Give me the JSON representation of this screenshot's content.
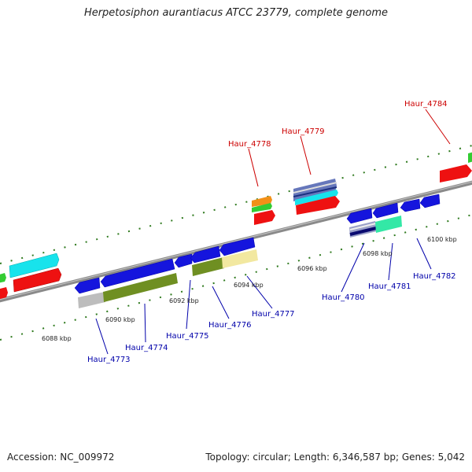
{
  "title": "Herpetosiphon aurantiacus ATCC 23779, complete genome",
  "footer": {
    "accession": "Accession: NC_009972",
    "summary": "Topology: circular; Length: 6,346,587 bp; Genes: 5,042"
  },
  "colors": {
    "backbone": "#8a8a8a",
    "tick": "#2f7a1e",
    "label_forward": "#cc0000",
    "label_reverse": "#0000aa"
  },
  "scale_labels": [
    "6088 kbp",
    "6090 kbp",
    "6092 kbp",
    "6094 kbp",
    "6096 kbp",
    "6098 kbp",
    "6100 kbp"
  ],
  "gene_labels": [
    {
      "id": "Haur_4778",
      "strand": "forward"
    },
    {
      "id": "Haur_4779",
      "strand": "forward"
    },
    {
      "id": "Haur_4784",
      "strand": "forward"
    },
    {
      "id": "Haur_4773",
      "strand": "reverse"
    },
    {
      "id": "Haur_4774",
      "strand": "reverse"
    },
    {
      "id": "Haur_4775",
      "strand": "reverse"
    },
    {
      "id": "Haur_4776",
      "strand": "reverse"
    },
    {
      "id": "Haur_4777",
      "strand": "reverse"
    },
    {
      "id": "Haur_4780",
      "strand": "reverse"
    },
    {
      "id": "Haur_4781",
      "strand": "reverse"
    },
    {
      "id": "Haur_4782",
      "strand": "reverse"
    }
  ]
}
